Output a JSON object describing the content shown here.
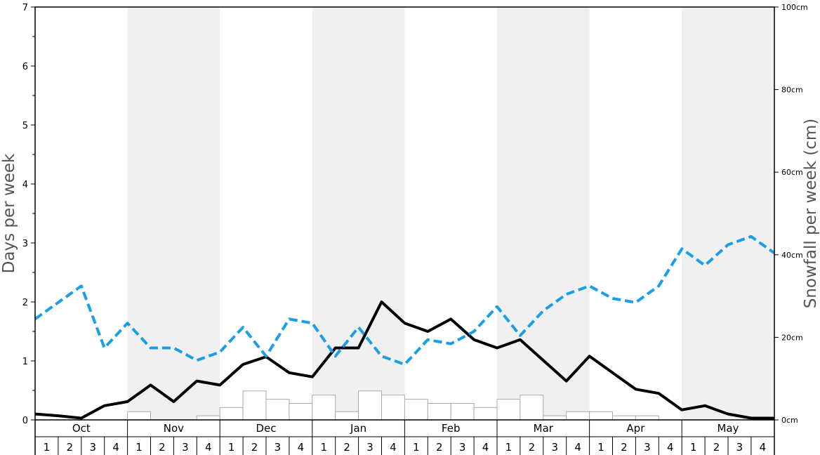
{
  "chart_data": {
    "type": "bar",
    "y_left_label": "Days per week",
    "y_right_label": "Snowfall per week (cm)",
    "y_left_range": [
      0,
      7
    ],
    "y_left_ticks": [
      "0",
      "1",
      "2",
      "3",
      "4",
      "5",
      "6",
      "7"
    ],
    "y_right_range": [
      0,
      100
    ],
    "y_right_ticks": [
      "0cm",
      "20cm",
      "40cm",
      "60cm",
      "80cm",
      "100cm"
    ],
    "months": [
      "Oct",
      "Nov",
      "Dec",
      "Jan",
      "Feb",
      "Mar",
      "Apr",
      "May"
    ],
    "week_labels": [
      "1",
      "2",
      "3",
      "4"
    ],
    "shaded_month_bands": [
      "Nov",
      "Jan",
      "Mar",
      "May"
    ],
    "colors": {
      "band": "#f0f0f0",
      "bar_edge": "#aaaaaa",
      "solid_line": "#000000",
      "dashed_line": "#1a9ee6"
    },
    "series": [
      {
        "type": "bar",
        "axis": "right",
        "values": [
          0,
          0,
          0,
          0,
          2.0,
          0,
          0,
          1.0,
          3.0,
          7.0,
          5.0,
          4.0,
          6.0,
          2.0,
          7.0,
          6.0,
          5.0,
          4.0,
          4.0,
          3.0,
          5.0,
          6.0,
          1.0,
          2.0,
          2.0,
          1.0,
          1.0,
          0,
          0,
          0,
          0,
          0
        ]
      },
      {
        "type": "line",
        "axis": "left",
        "style": "solid",
        "values": [
          0.1,
          0.07,
          0.03,
          0.24,
          0.31,
          0.59,
          0.31,
          0.66,
          0.59,
          0.94,
          1.07,
          0.8,
          0.73,
          1.22,
          1.22,
          2.0,
          1.64,
          1.5,
          1.71,
          1.36,
          1.22,
          1.36,
          1.01,
          0.66,
          1.08,
          0.8,
          0.52,
          0.45,
          0.17,
          0.24,
          0.1,
          0.03,
          0.03
        ]
      },
      {
        "type": "line",
        "axis": "left",
        "style": "dashed",
        "values": [
          1.71,
          1.99,
          2.27,
          1.22,
          1.64,
          1.22,
          1.22,
          1.01,
          1.15,
          1.57,
          1.08,
          1.71,
          1.64,
          1.08,
          1.57,
          1.08,
          0.94,
          1.36,
          1.29,
          1.5,
          1.92,
          1.43,
          1.85,
          2.13,
          2.27,
          2.06,
          1.99,
          2.27,
          2.9,
          2.62,
          2.97,
          3.11,
          2.83
        ]
      }
    ]
  }
}
